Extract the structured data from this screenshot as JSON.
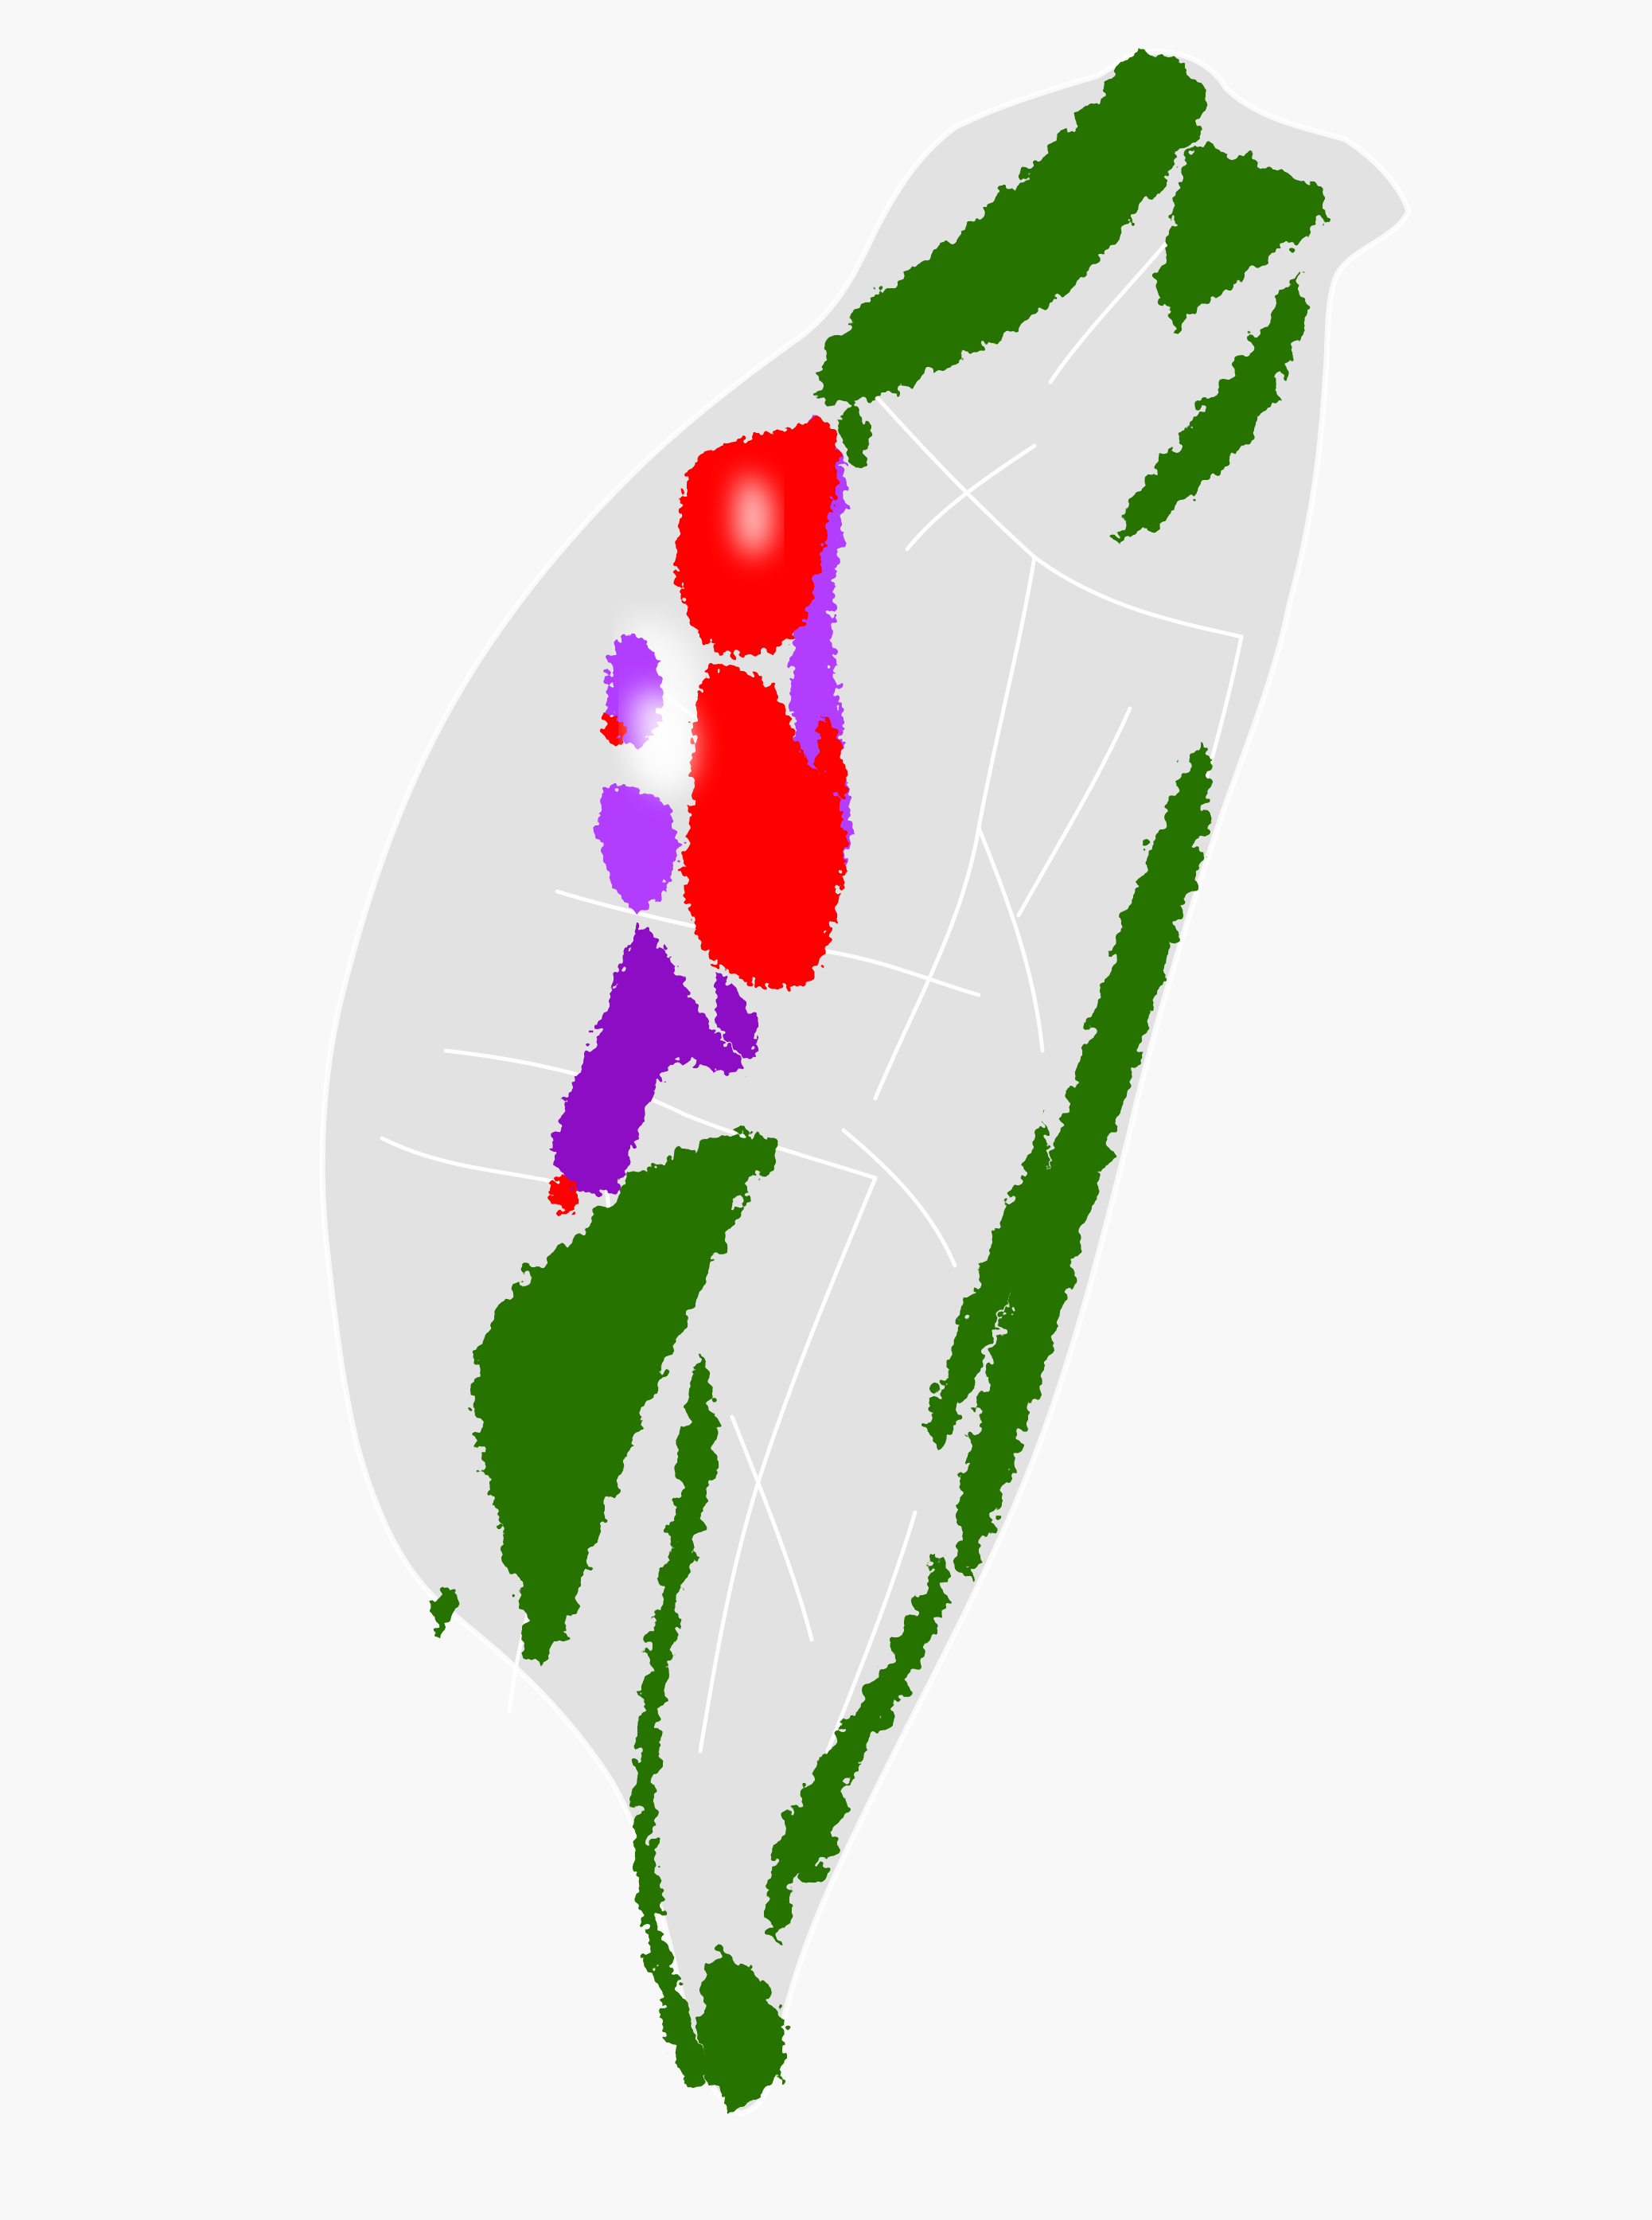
{
  "map": {
    "region": "Taiwan",
    "background_color": "#f8f8f8",
    "land_color": "#e2e2e2",
    "road_color": "#ffffff",
    "layers": [
      {
        "id": "green-zone",
        "color": "#267300"
      },
      {
        "id": "red-zone",
        "color": "#ff0000"
      },
      {
        "id": "purple-zone",
        "color": "#8c0cc4"
      },
      {
        "id": "violet-zone",
        "color": "#b23cff"
      }
    ]
  }
}
